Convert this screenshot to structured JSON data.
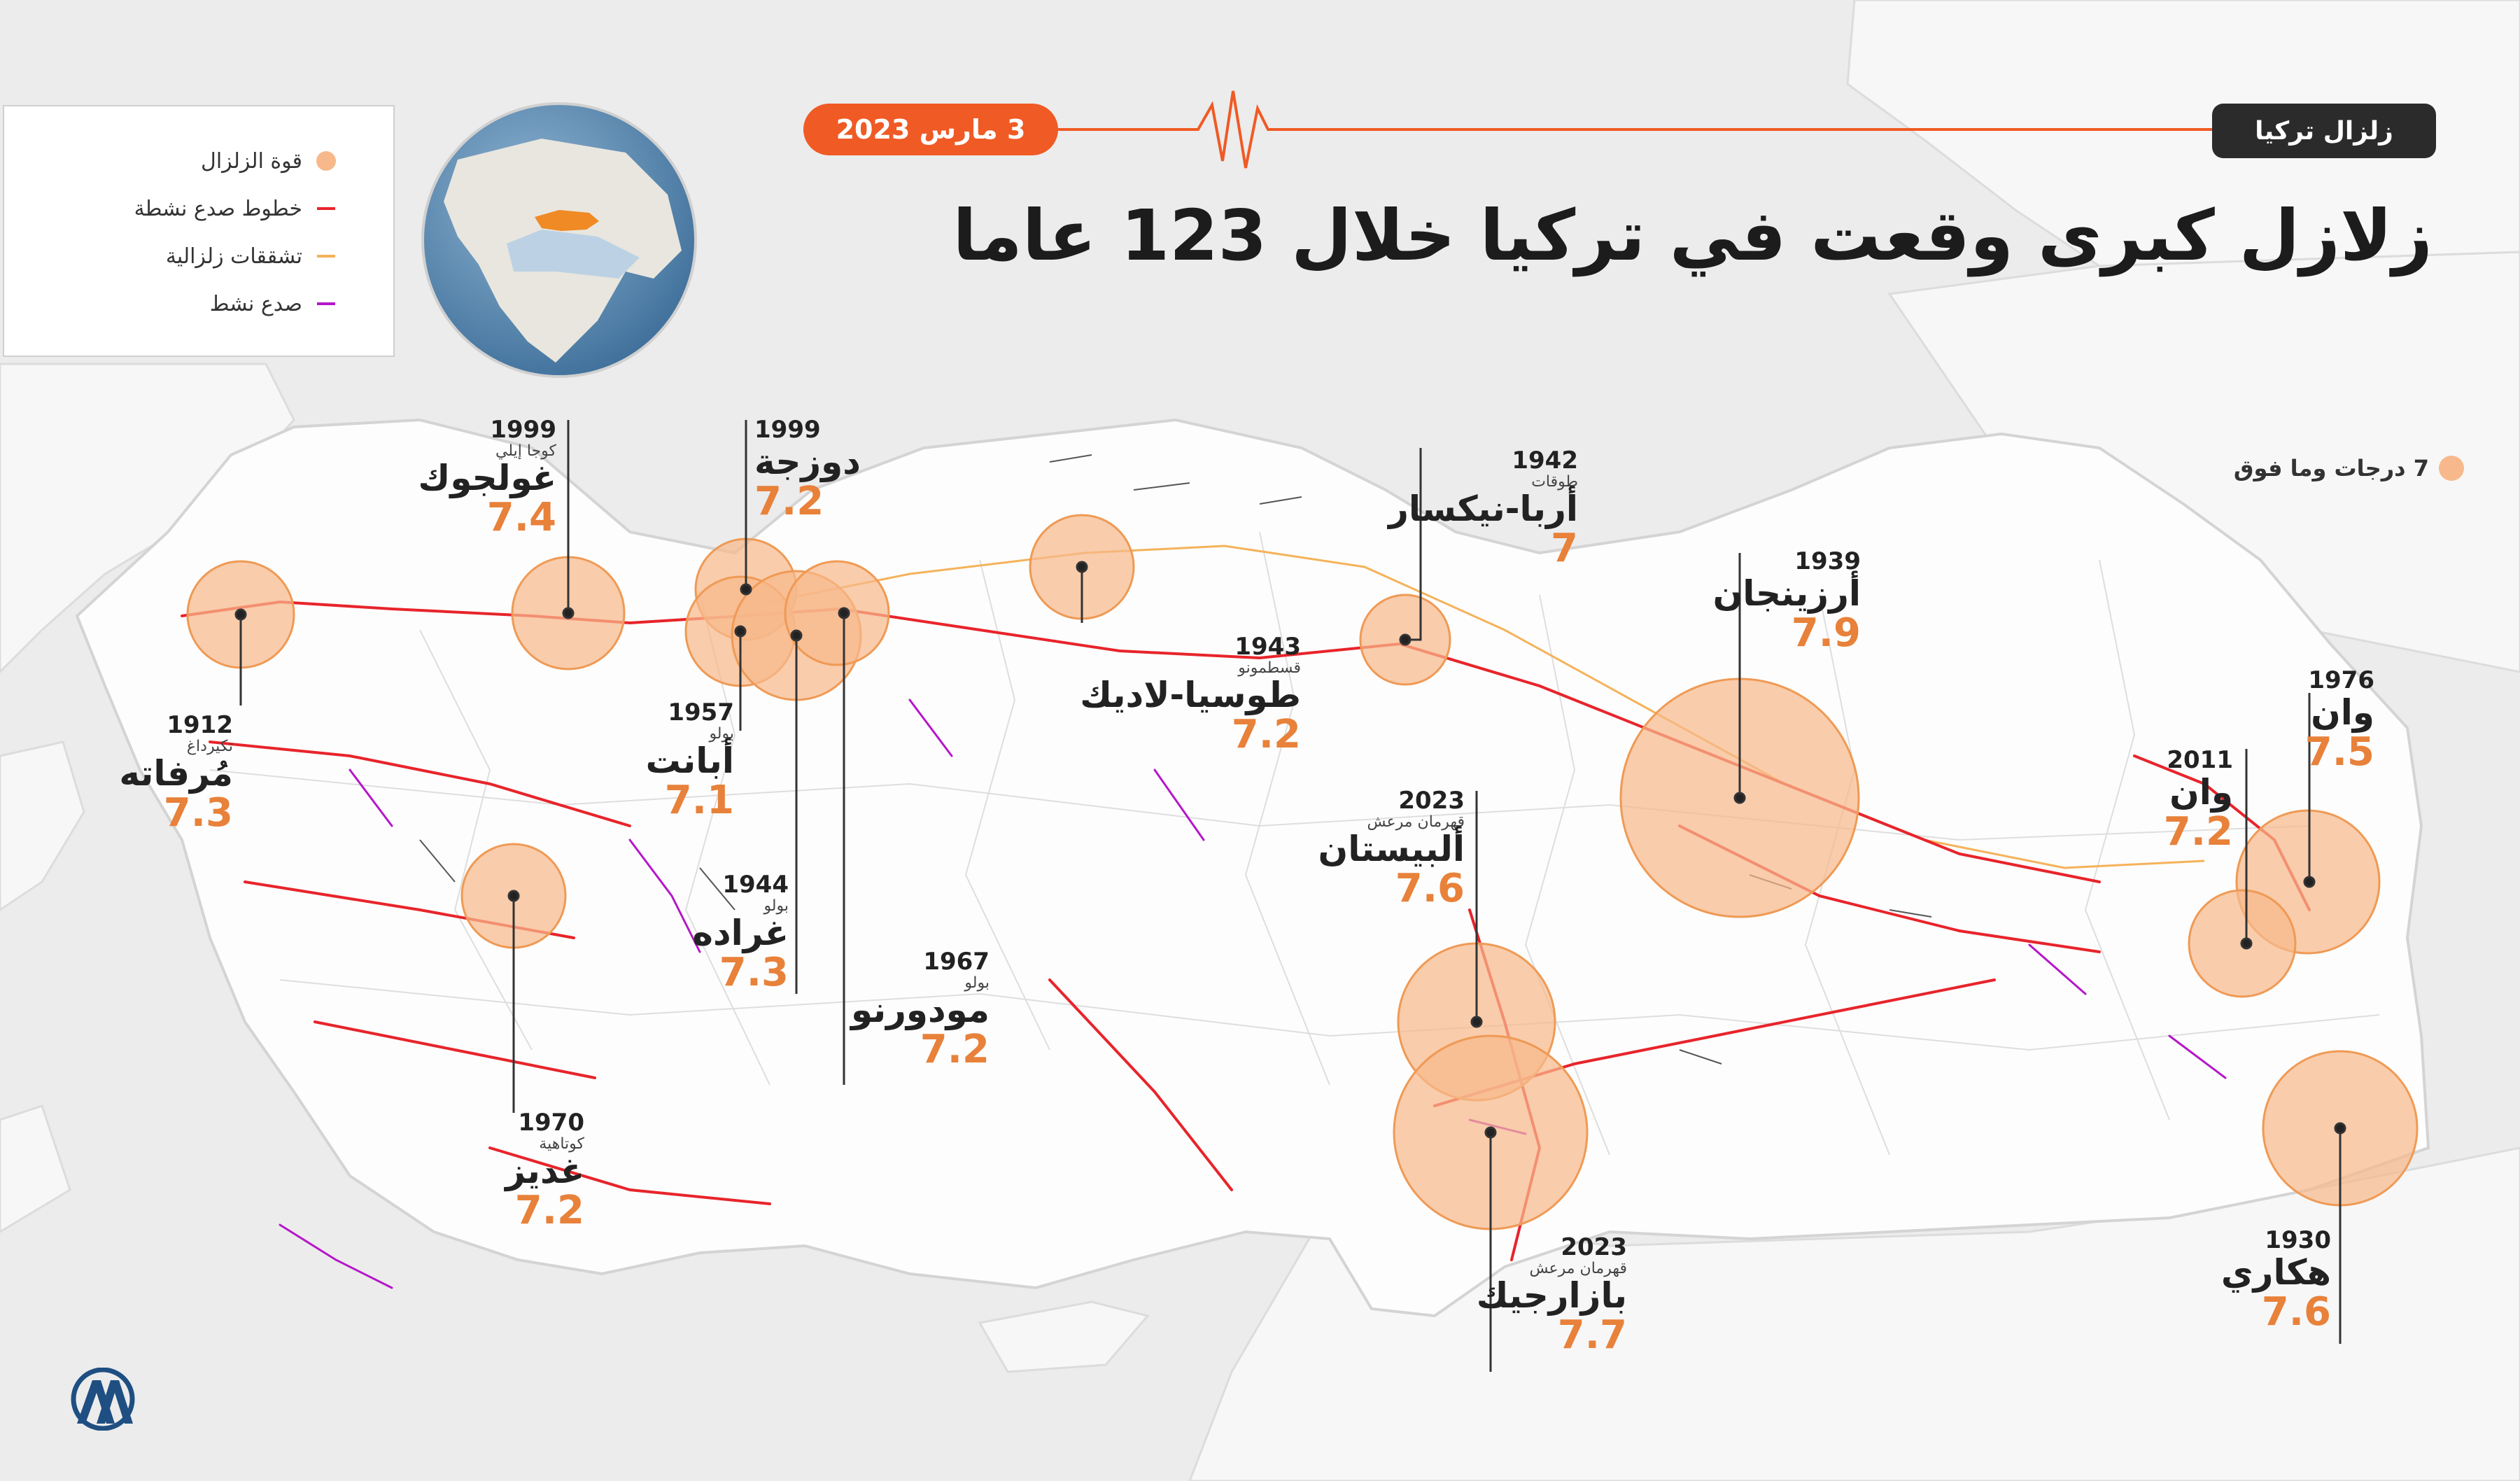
{
  "header": {
    "tag": "زلزال تركيا",
    "date": "3 مارس 2023",
    "title": "زلازل كبرى وقعت في تركيا خلال 123 عاما"
  },
  "legend": {
    "items": [
      {
        "label": "قوة الزلزال",
        "symbol": "circle",
        "color": "#f7b98b"
      },
      {
        "label": "خطوط صدع نشطة",
        "symbol": "line",
        "color": "#e8242b"
      },
      {
        "label": "تشققات زلزالية",
        "symbol": "line",
        "color": "#f5b25a"
      },
      {
        "label": "صدع نشط",
        "symbol": "line",
        "color": "#b517c9"
      }
    ],
    "magnitude_key": "7 درجات وما فوق"
  },
  "earthquakes": [
    {
      "id": "golcuk",
      "year": "1999",
      "province": "كوجا إيلي",
      "city": "غولجوك",
      "magnitude": "7.4"
    },
    {
      "id": "duzce",
      "year": "1999",
      "province": "",
      "city": "دوزجة",
      "magnitude": "7.2"
    },
    {
      "id": "abant",
      "year": "1957",
      "province": "بولو",
      "city": "أبانت",
      "magnitude": "7.1"
    },
    {
      "id": "gerede",
      "year": "1944",
      "province": "بولو",
      "city": "غراده",
      "magnitude": "7.3"
    },
    {
      "id": "mudurnu",
      "year": "1967",
      "province": "بولو",
      "city": "مودورنو",
      "magnitude": "7.2"
    },
    {
      "id": "murefte",
      "year": "1912",
      "province": "تكيرداغ",
      "city": "مُرفاته",
      "magnitude": "7.3"
    },
    {
      "id": "gediz",
      "year": "1970",
      "province": "كوتاهية",
      "city": "غديز",
      "magnitude": "7.2"
    },
    {
      "id": "tosya",
      "year": "1943",
      "province": "قسطمونو",
      "city": "طوسيا-لاديك",
      "magnitude": "7.2"
    },
    {
      "id": "erbaa",
      "year": "1942",
      "province": "طوقات",
      "city": "أربا-نيكسار",
      "magnitude": "7"
    },
    {
      "id": "erzincan",
      "year": "1939",
      "province": "",
      "city": "أرزينجان",
      "magnitude": "7.9"
    },
    {
      "id": "elbistan",
      "year": "2023",
      "province": "قهرمان مرعش",
      "city": "ألبيستان",
      "magnitude": "7.6"
    },
    {
      "id": "pazarcik",
      "year": "2023",
      "province": "قهرمان مرعش",
      "city": "بازارجيك",
      "magnitude": "7.7"
    },
    {
      "id": "van1976",
      "year": "1976",
      "province": "",
      "city": "وان",
      "magnitude": "7.5"
    },
    {
      "id": "van2011",
      "year": "2011",
      "province": "",
      "city": "وان",
      "magnitude": "7.2"
    },
    {
      "id": "hakkari",
      "year": "1930",
      "province": "",
      "city": "هكاري",
      "magnitude": "7.6"
    }
  ],
  "colors": {
    "accent": "#f05a24",
    "circle_fill": "#f7b98b",
    "magnitude_text": "#e8813a",
    "active_fault": "#e8242b",
    "seismic_crack": "#f5b25a",
    "active_fault_purple": "#b517c9",
    "turkey_highlight": "#f08a24",
    "sea": "#e9e9e9"
  },
  "logo": {
    "text": "AA"
  }
}
